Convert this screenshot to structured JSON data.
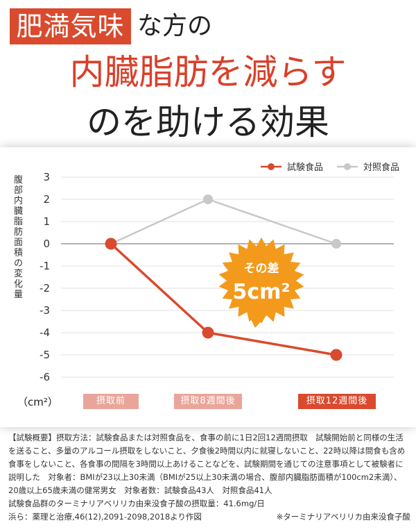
{
  "headline": {
    "badge": "肥満気味",
    "rest": "な方の",
    "line2": "内臓脂肪を減らす",
    "line3": "のを助ける効果"
  },
  "colors": {
    "accent": "#d94a2e",
    "control": "#c8c8c8",
    "burst": "#f39a1c",
    "label_light": "#e9a59a"
  },
  "chart_data": {
    "type": "line",
    "categories": [
      "摂取前",
      "摂取8週間後",
      "摂取12週間後"
    ],
    "series": [
      {
        "name": "試験食品",
        "values": [
          0,
          -4,
          -5
        ],
        "color": "#d94a2e"
      },
      {
        "name": "対照食品",
        "values": [
          0,
          2,
          0
        ],
        "color": "#c8c8c8"
      }
    ],
    "ylabel": "腹部内臓脂肪面積の変化量",
    "unit": "（cm²）",
    "yticks": [
      "3",
      "2",
      "1",
      "0",
      "-1",
      "-2",
      "-3",
      "-4",
      "-5",
      "-6"
    ],
    "ylim": [
      -6,
      3
    ],
    "grid": "horizontal",
    "legend": "top-right",
    "annotation": {
      "line1": "その差",
      "line2": "5cm²"
    }
  },
  "notes": {
    "line1": "【試験概要】摂取方法：試験食品または対照食品を、食事の前に1日2回12週間摂取　試験開始前と同様の生活",
    "line2": "を送ること、多量のアルコール摂取をしないこと、夕食後2時間以内に就寝しないこと、22時以降は間食も含め",
    "line3": "食事をしないこと、各食事の間隔を3時間以上あけることなどを、試験期間を通じての注意事項として被験者に",
    "line4": "説明した　対象者：BMIが23以上30未満（BMIが25以上30未満の場合、腹部内臓脂肪面積が100cm2未満）、",
    "line5": "20歳以上65歳未満の健常男女　対象者数：試験食品43人　対照食品41人",
    "line6": "試験食品群のターミナリアベリリカ由来没食子酸の摂取量：41.6mg/日",
    "source": "浜ら：薬理と治療,46(12),2091-2098,2018より作図",
    "footnote": "※ターミナリアベリリカ由来没食子酸"
  }
}
